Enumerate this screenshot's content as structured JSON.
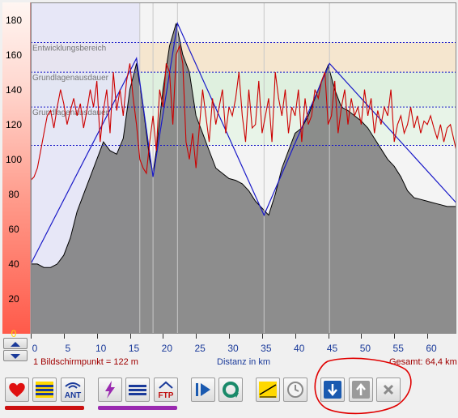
{
  "colors": {
    "heart_rate_line": "#cc0000",
    "elevation_fill": "#7a7a7a",
    "target_line": "#1a1ac8",
    "zone_development": "#f5e6cf",
    "zone_base2": "#dff0df",
    "zone_base1": "#e8f4e8",
    "axis_text_blue": "#1a3a9a",
    "axis_text_red": "#a00000",
    "hr_scale_bar": "#ff6a5a",
    "annotation_circle": "#e00000"
  },
  "y_axis": {
    "ticks": [
      "180",
      "160",
      "140",
      "120",
      "100",
      "80",
      "60",
      "40",
      "20",
      "0"
    ]
  },
  "zones": [
    {
      "label": "Entwicklungsbereich",
      "min": 150,
      "max": 167
    },
    {
      "label": "Grundlagenausdauer",
      "min": 130,
      "max": 150
    },
    {
      "label": "Grundlagenausdauer",
      "min": 108,
      "max": 130
    }
  ],
  "x_axis": {
    "ticks": [
      "0",
      "5",
      "10",
      "15",
      "20",
      "25",
      "30",
      "35",
      "40",
      "45",
      "50",
      "55",
      "60"
    ],
    "title": "Distanz in km",
    "scale_text": "1 Bildschirmpunkt = 122 m",
    "total_text": "Gesamt: 64,4 km"
  },
  "chart_data": {
    "type": "line",
    "title": "",
    "xlabel": "Distanz in km",
    "ylabel": "",
    "xlim": [
      0,
      64.4
    ],
    "ylim": [
      0,
      190
    ],
    "series": [
      {
        "name": "",
        "kind": "elevation",
        "x": [
          0,
          1,
          2,
          3,
          4,
          5,
          6,
          7,
          8,
          9,
          10,
          11,
          12,
          13,
          14,
          15,
          16,
          17,
          18,
          18.5,
          19,
          20,
          21,
          22,
          23,
          24,
          25,
          26,
          27,
          28,
          29,
          30,
          31,
          32,
          33,
          34,
          35,
          36,
          37,
          38,
          39,
          40,
          41,
          42,
          43,
          44,
          45,
          46,
          47,
          48,
          49,
          50,
          51,
          52,
          53,
          54,
          55,
          56,
          57,
          58,
          59,
          60,
          61,
          62,
          63,
          64.4
        ],
        "y": [
          40,
          40,
          38,
          38,
          40,
          45,
          55,
          70,
          80,
          90,
          100,
          110,
          105,
          103,
          112,
          140,
          155,
          130,
          100,
          92,
          105,
          140,
          165,
          178,
          160,
          150,
          125,
          115,
          105,
          95,
          92,
          89,
          88,
          86,
          82,
          76,
          72,
          68,
          80,
          95,
          105,
          115,
          118,
          125,
          135,
          145,
          154,
          140,
          130,
          128,
          125,
          122,
          118,
          112,
          106,
          100,
          96,
          90,
          82,
          78,
          77,
          76,
          75,
          74,
          73,
          73
        ]
      },
      {
        "name": "",
        "kind": "heart_rate",
        "x": [
          0,
          0.5,
          1,
          1.5,
          2,
          2.5,
          3,
          3.5,
          4,
          4.5,
          5,
          5.5,
          6,
          6.5,
          7,
          7.5,
          8,
          8.5,
          9,
          9.5,
          10,
          10.5,
          11,
          11.5,
          12,
          12.5,
          13,
          13.5,
          14,
          14.5,
          15,
          15.5,
          16,
          16.5,
          17,
          17.5,
          18,
          18.5,
          19,
          19.5,
          20,
          20.5,
          21,
          21.5,
          22,
          22.5,
          23,
          23.5,
          24,
          24.5,
          25,
          25.5,
          26,
          26.5,
          27,
          27.5,
          28,
          28.5,
          29,
          29.5,
          30,
          30.5,
          31,
          31.5,
          32,
          32.5,
          33,
          33.5,
          34,
          34.5,
          35,
          35.5,
          36,
          36.5,
          37,
          37.5,
          38,
          38.5,
          39,
          39.5,
          40,
          40.5,
          41,
          41.5,
          42,
          42.5,
          43,
          43.5,
          44,
          44.5,
          45,
          45.5,
          46,
          46.5,
          47,
          47.5,
          48,
          48.5,
          49,
          49.5,
          50,
          50.5,
          51,
          51.5,
          52,
          52.5,
          53,
          53.5,
          54,
          54.5,
          55,
          55.5,
          56,
          56.5,
          57,
          57.5,
          58,
          58.5,
          59,
          59.5,
          60,
          60.5,
          61,
          61.5,
          62,
          62.5,
          63,
          63.5,
          64.4
        ],
        "y": [
          88,
          90,
          95,
          105,
          115,
          125,
          128,
          118,
          130,
          140,
          132,
          120,
          128,
          135,
          125,
          132,
          118,
          128,
          140,
          130,
          145,
          110,
          128,
          140,
          115,
          150,
          128,
          140,
          125,
          145,
          155,
          135,
          120,
          100,
          95,
          92,
          110,
          125,
          105,
          140,
          130,
          155,
          150,
          120,
          160,
          165,
          155,
          110,
          100,
          115,
          95,
          118,
          140,
          125,
          110,
          135,
          120,
          130,
          140,
          115,
          130,
          125,
          135,
          150,
          125,
          110,
          140,
          118,
          120,
          145,
          115,
          125,
          135,
          110,
          150,
          135,
          125,
          140,
          115,
          130,
          125,
          140,
          110,
          135,
          120,
          125,
          140,
          135,
          145,
          150,
          120,
          125,
          145,
          115,
          130,
          140,
          120,
          135,
          125,
          130,
          120,
          140,
          125,
          135,
          115,
          128,
          120,
          130,
          125,
          140,
          110,
          120,
          125,
          115,
          120,
          130,
          118,
          125,
          115,
          122,
          120,
          125,
          118,
          112,
          120,
          110,
          118,
          120,
          105
        ]
      },
      {
        "name": "",
        "kind": "target_profile",
        "x": [
          0,
          16,
          18.5,
          22.2,
          35.3,
          45.2,
          64.4
        ],
        "y": [
          40,
          158,
          90,
          178,
          68,
          155,
          75
        ]
      }
    ],
    "thresholds": [
      167,
      150,
      130,
      108
    ],
    "segments_x": [
      16.5,
      18.5,
      22.2,
      35.3,
      45.2
    ],
    "grid": false
  },
  "toolbar": {
    "buttons": [
      {
        "name": "heart-rate-button",
        "icon": "heart-icon"
      },
      {
        "name": "zones-button",
        "icon": "zones-bars-icon"
      },
      {
        "name": "ant-button",
        "icon": "ant-icon",
        "text": "ANT"
      },
      {
        "name": "power-button",
        "icon": "lightning-icon"
      },
      {
        "name": "power-zones-button",
        "icon": "zones-bars-icon"
      },
      {
        "name": "ftp-button",
        "icon": "ftp-icon",
        "text": "FTP"
      },
      {
        "name": "play-button",
        "icon": "play-icon"
      },
      {
        "name": "repeat-button",
        "icon": "loop-icon"
      },
      {
        "name": "slope-button",
        "icon": "slope-icon"
      },
      {
        "name": "clock-button",
        "icon": "clock-icon"
      },
      {
        "name": "move-down-button",
        "icon": "arrow-down-icon"
      },
      {
        "name": "move-up-button",
        "icon": "arrow-up-icon"
      },
      {
        "name": "delete-button",
        "icon": "close-icon"
      }
    ]
  }
}
